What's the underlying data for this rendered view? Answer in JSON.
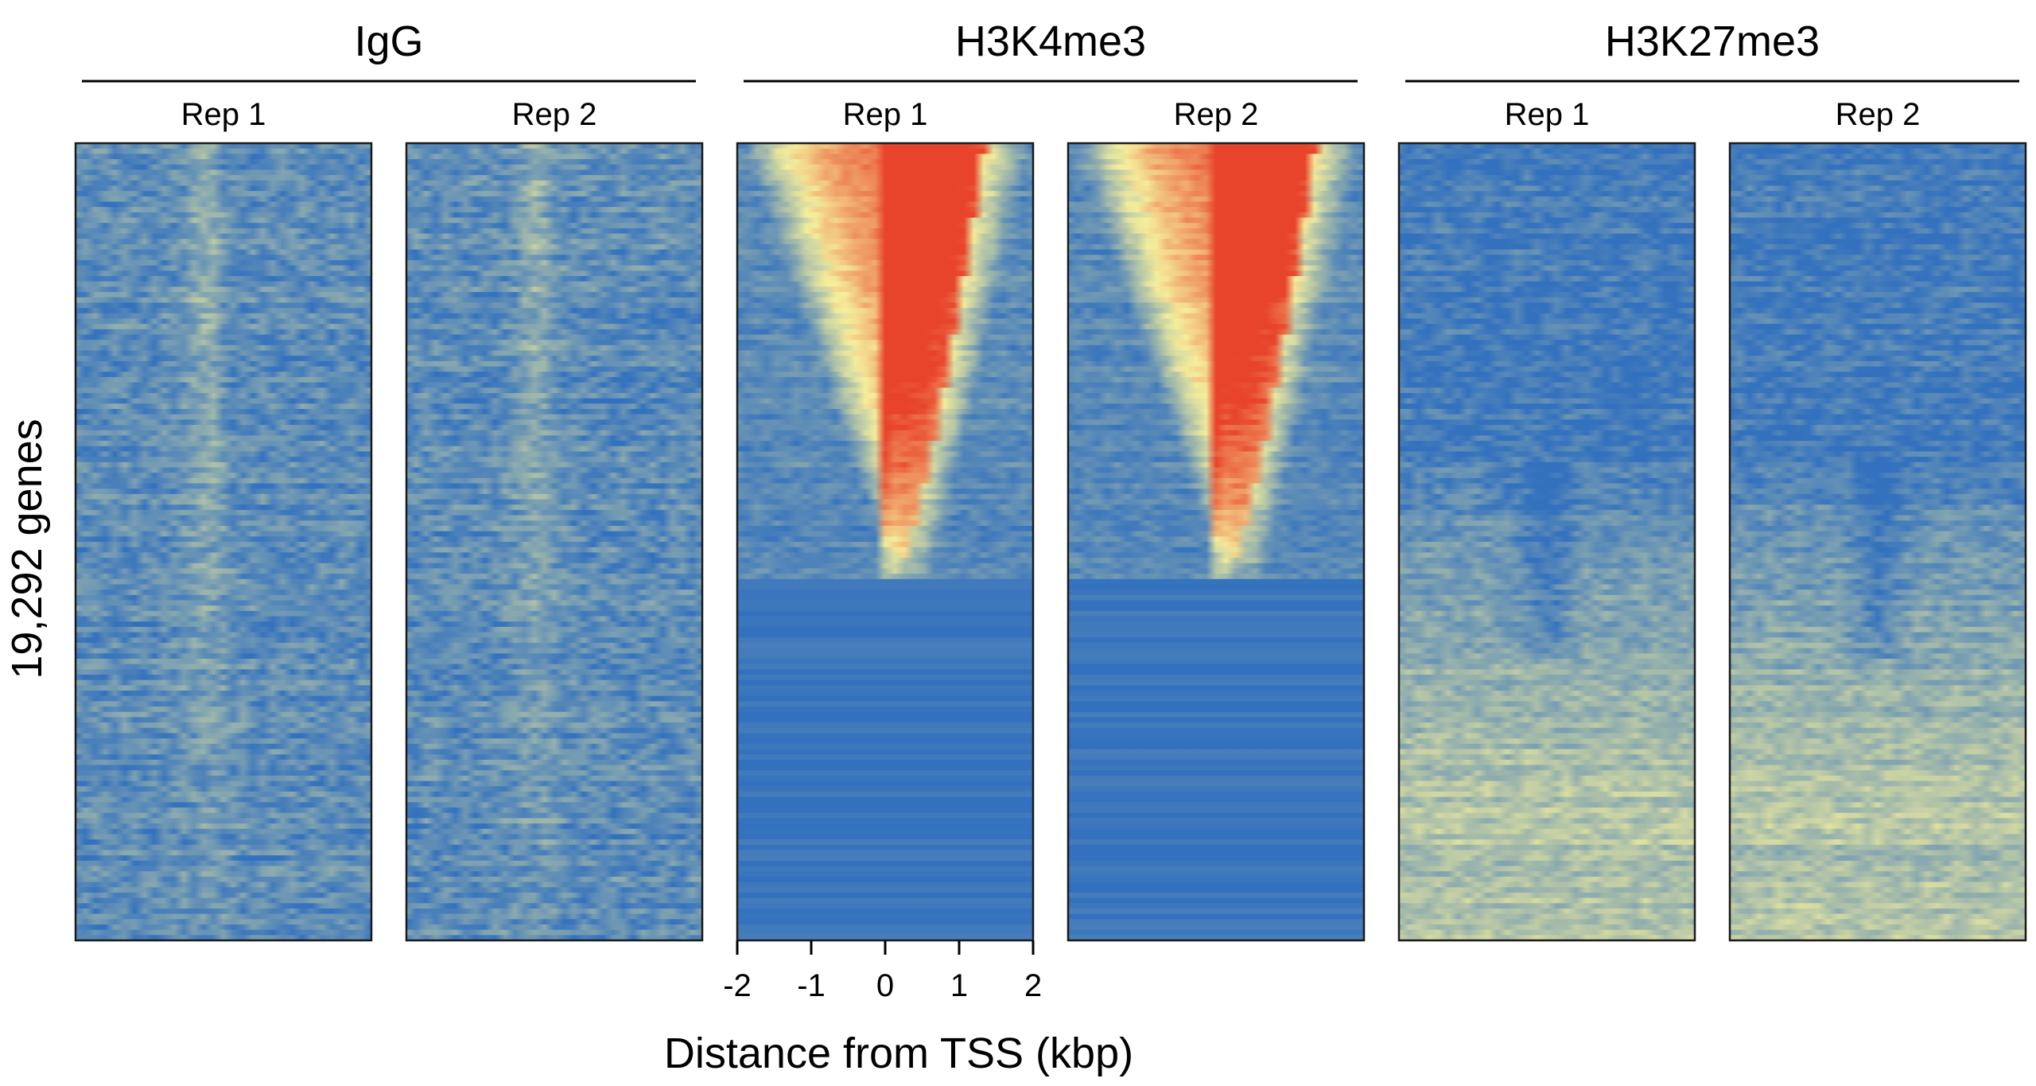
{
  "chart_data": {
    "type": "heatmap",
    "ylabel": "19,292 genes",
    "xlabel": "Distance from TSS (kbp)",
    "x_ticks": [
      "-2",
      "-1",
      "0",
      "1",
      "2"
    ],
    "x_tick_values": [
      -2,
      -1,
      0,
      1,
      2
    ],
    "xlim": [
      -2,
      2
    ],
    "gene_count": 19292,
    "colors": {
      "low": "#3371be",
      "mid": "#f5ef9c",
      "high": "#e8432b"
    },
    "groups": [
      {
        "name": "IgG",
        "pattern": "background",
        "replicates": [
          "Rep 1",
          "Rep 2"
        ]
      },
      {
        "name": "H3K4me3",
        "pattern": "tss-peak",
        "replicates": [
          "Rep 1",
          "Rep 2"
        ]
      },
      {
        "name": "H3K27me3",
        "pattern": "broad-lower",
        "replicates": [
          "Rep 1",
          "Rep 2"
        ]
      }
    ]
  }
}
